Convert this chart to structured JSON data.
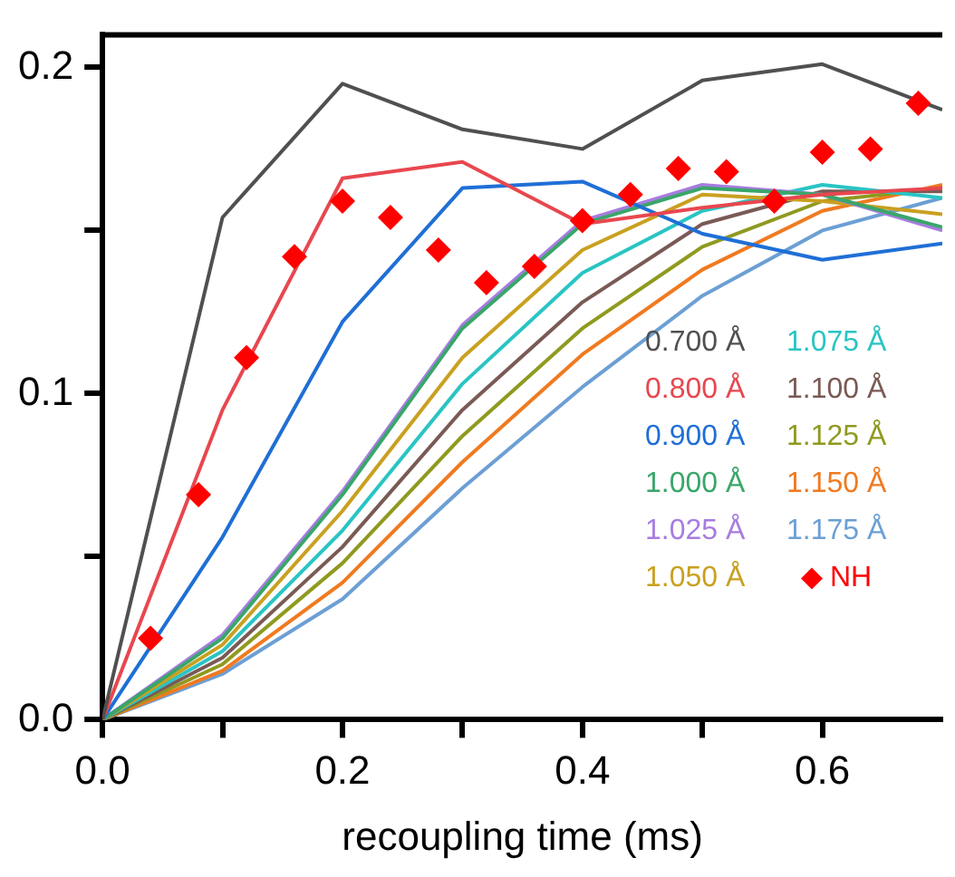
{
  "chart_data": {
    "type": "line",
    "xlabel": "recoupling time (ms)",
    "xlim": [
      0,
      0.7
    ],
    "ylim": [
      0,
      0.21
    ],
    "xticks": [
      {
        "value": 0,
        "label": "0.0"
      },
      {
        "value": 0.1,
        "label": null
      },
      {
        "value": 0.2,
        "label": "0.2"
      },
      {
        "value": 0.3,
        "label": null
      },
      {
        "value": 0.4,
        "label": "0.4"
      },
      {
        "value": 0.5,
        "label": null
      },
      {
        "value": 0.6,
        "label": "0.6"
      }
    ],
    "yticks": [
      {
        "value": 0,
        "label": "0.0"
      },
      {
        "value": 0.05,
        "label": null
      },
      {
        "value": 0.1,
        "label": "0.1"
      },
      {
        "value": 0.15,
        "label": null
      },
      {
        "value": 0.2,
        "label": "0.2"
      }
    ],
    "grid": false,
    "legend": "right",
    "marker": "none",
    "line_style": "solid",
    "x": [
      0,
      0.1,
      0.2,
      0.3,
      0.4,
      0.5,
      0.6,
      0.7
    ],
    "series": [
      {
        "name": "0.700 Å",
        "color": "#505050",
        "values": [
          0,
          0.154,
          0.195,
          0.181,
          0.175,
          0.196,
          0.201,
          0.187
        ]
      },
      {
        "name": "0.800 Å",
        "color": "#e8474f",
        "values": [
          0,
          0.095,
          0.166,
          0.171,
          0.152,
          0.157,
          0.161,
          0.163
        ]
      },
      {
        "name": "0.900 Å",
        "color": "#1f6fd6",
        "values": [
          0,
          0.056,
          0.122,
          0.163,
          0.165,
          0.149,
          0.141,
          0.146
        ]
      },
      {
        "name": "1.000 Å",
        "color": "#3aa66a",
        "values": [
          0,
          0.025,
          0.069,
          0.12,
          0.152,
          0.163,
          0.161,
          0.151
        ]
      },
      {
        "name": "1.025 Å",
        "color": "#a77de0",
        "values": [
          0,
          0.026,
          0.07,
          0.121,
          0.153,
          0.164,
          0.161,
          0.15
        ]
      },
      {
        "name": "1.050 Å",
        "color": "#c9a020",
        "values": [
          0,
          0.023,
          0.064,
          0.111,
          0.144,
          0.161,
          0.159,
          0.155
        ]
      },
      {
        "name": "1.075 Å",
        "color": "#29c4c4",
        "values": [
          0,
          0.021,
          0.058,
          0.103,
          0.137,
          0.156,
          0.164,
          0.16
        ]
      },
      {
        "name": "1.100 Å",
        "color": "#7a5a55",
        "values": [
          0,
          0.019,
          0.053,
          0.095,
          0.128,
          0.152,
          0.162,
          0.162
        ]
      },
      {
        "name": "1.125 Å",
        "color": "#8f9a1f",
        "values": [
          0,
          0.017,
          0.048,
          0.087,
          0.12,
          0.145,
          0.159,
          0.163
        ]
      },
      {
        "name": "1.150 Å",
        "color": "#f07a20",
        "values": [
          0,
          0.015,
          0.042,
          0.079,
          0.112,
          0.138,
          0.156,
          0.164
        ]
      },
      {
        "name": "1.175 Å",
        "color": "#6c9fd4",
        "values": [
          0,
          0.014,
          0.037,
          0.071,
          0.102,
          0.13,
          0.15,
          0.16
        ]
      },
      {
        "name": "NH",
        "type": "scatter",
        "marker": "diamond",
        "color": "#ff0000",
        "x": [
          0.04,
          0.08,
          0.12,
          0.16,
          0.2,
          0.24,
          0.28,
          0.32,
          0.36,
          0.4,
          0.44,
          0.48,
          0.52,
          0.56,
          0.6,
          0.64,
          0.68
        ],
        "values": [
          0.025,
          0.069,
          0.111,
          0.142,
          0.159,
          0.154,
          0.144,
          0.134,
          0.139,
          0.153,
          0.161,
          0.169,
          0.168,
          0.159,
          0.174,
          0.175,
          0.189
        ]
      }
    ]
  }
}
